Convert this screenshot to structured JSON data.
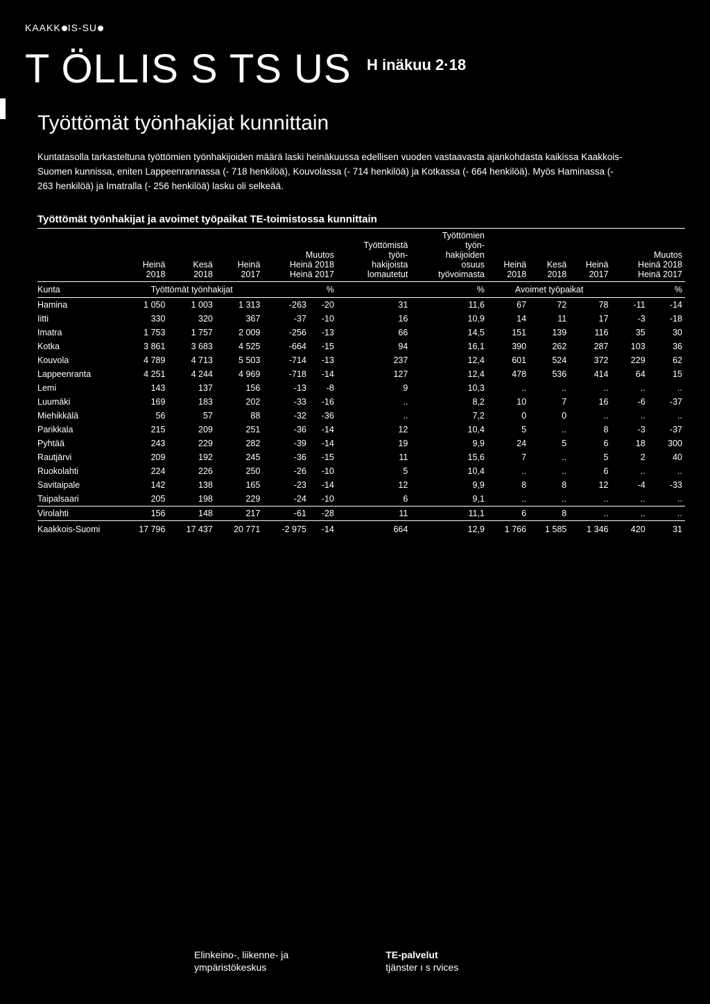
{
  "region_label_parts": [
    "KAAKK",
    "IS-SU"
  ],
  "main_title": "T ÖLLIS   S   TS  US",
  "period": "H  inäkuu 2·18",
  "sub_title": "Työttömät työnhakijat kunnittain",
  "intro": "Kuntatasolla tarkasteltuna työttömien työnhakijoiden määrä laski heinäkuussa edellisen vuoden vastaavasta ajankohdasta kaikissa Kaakkois-Suomen kunnissa, eniten Lappeenrannassa (- 718 henkilöä), Kouvolassa (- 714 henkilöä) ja Kotkassa (- 664 henkilöä). Myös Haminassa (- 263 henkilöä) ja Imatralla (- 256 henkilöä) lasku oli selkeää.",
  "table_title": "Työttömät työnhakijat ja avoimet työpaikat TE-toimistossa kunnittain",
  "headers": {
    "blank": "",
    "heina2018": "Heinä\n2018",
    "kesa2018": "Kesä\n2018",
    "heina2017": "Heinä\n2017",
    "muutos1": "Muutos\nHeinä 2018\nHeinä 2017",
    "tyottomista": "Työttömistä\ntyön-\nhakijoista\nlomautetut",
    "tyottomien": "Työttömien\ntyön-\nhakijoiden\nosuus\ntyövoimasta",
    "heina2018b": "Heinä\n2018",
    "kesa2018b": "Kesä\n2018",
    "heina2017b": "Heinä\n2017",
    "muutos2": "Muutos\nHeinä 2018\nHeinä 2017"
  },
  "section_row": {
    "kunta": "Kunta",
    "left_label": "Työttömät työnhakijat",
    "pct": "%",
    "pct2": "%",
    "right_label": "Avoimet työpaikat",
    "pct3": "%"
  },
  "rows": [
    {
      "k": "Hamina",
      "c": [
        "1 050",
        "1 003",
        "1 313",
        "-263",
        "-20",
        "31",
        "11,6",
        "67",
        "72",
        "78",
        "-11",
        "-14"
      ]
    },
    {
      "k": "Iitti",
      "c": [
        "330",
        "320",
        "367",
        "-37",
        "-10",
        "16",
        "10,9",
        "14",
        "11",
        "17",
        "-3",
        "-18"
      ]
    },
    {
      "k": "Imatra",
      "c": [
        "1 753",
        "1 757",
        "2 009",
        "-256",
        "-13",
        "66",
        "14,5",
        "151",
        "139",
        "116",
        "35",
        "30"
      ]
    },
    {
      "k": "Kotka",
      "c": [
        "3 861",
        "3 683",
        "4 525",
        "-664",
        "-15",
        "94",
        "16,1",
        "390",
        "262",
        "287",
        "103",
        "36"
      ]
    },
    {
      "k": "Kouvola",
      "c": [
        "4 789",
        "4 713",
        "5 503",
        "-714",
        "-13",
        "237",
        "12,4",
        "601",
        "524",
        "372",
        "229",
        "62"
      ]
    },
    {
      "k": "Lappeenranta",
      "c": [
        "4 251",
        "4 244",
        "4 969",
        "-718",
        "-14",
        "127",
        "12,4",
        "478",
        "536",
        "414",
        "64",
        "15"
      ]
    },
    {
      "k": "Lemi",
      "c": [
        "143",
        "137",
        "156",
        "-13",
        "-8",
        "9",
        "10,3",
        "..",
        "..",
        "..",
        "..",
        ".."
      ]
    },
    {
      "k": "Luumäki",
      "c": [
        "169",
        "183",
        "202",
        "-33",
        "-16",
        "..",
        "8,2",
        "10",
        "7",
        "16",
        "-6",
        "-37"
      ]
    },
    {
      "k": "Miehikkälä",
      "c": [
        "56",
        "57",
        "88",
        "-32",
        "-36",
        "..",
        "7,2",
        "0",
        "0",
        "..",
        "..",
        ".."
      ]
    },
    {
      "k": "Parikkala",
      "c": [
        "215",
        "209",
        "251",
        "-36",
        "-14",
        "12",
        "10,4",
        "5",
        "..",
        "8",
        "-3",
        "-37"
      ]
    },
    {
      "k": "Pyhtää",
      "c": [
        "243",
        "229",
        "282",
        "-39",
        "-14",
        "19",
        "9,9",
        "24",
        "5",
        "6",
        "18",
        "300"
      ]
    },
    {
      "k": "Rautjärvi",
      "c": [
        "209",
        "192",
        "245",
        "-36",
        "-15",
        "11",
        "15,6",
        "7",
        "..",
        "5",
        "2",
        "40"
      ]
    },
    {
      "k": "Ruokolahti",
      "c": [
        "224",
        "226",
        "250",
        "-26",
        "-10",
        "5",
        "10,4",
        "..",
        "..",
        "6",
        "..",
        ".."
      ]
    },
    {
      "k": "Savitaipale",
      "c": [
        "142",
        "138",
        "165",
        "-23",
        "-14",
        "12",
        "9,9",
        "8",
        "8",
        "12",
        "-4",
        "-33"
      ]
    },
    {
      "k": "Taipalsaari",
      "c": [
        "205",
        "198",
        "229",
        "-24",
        "-10",
        "6",
        "9,1",
        "..",
        "..",
        "..",
        "..",
        ".."
      ]
    },
    {
      "k": "Virolahti",
      "c": [
        "156",
        "148",
        "217",
        "-61",
        "-28",
        "11",
        "11,1",
        "6",
        "8",
        "..",
        "..",
        ".."
      ],
      "sep": true
    }
  ],
  "total": {
    "k": "Kaakkois-Suomi",
    "c": [
      "17 796",
      "17 437",
      "20 771",
      "-2 975",
      "-14",
      "664",
      "12,9",
      "1 766",
      "1 585",
      "1 346",
      "420",
      "31"
    ]
  },
  "footer": {
    "left1": "Elinkeino-, liikenne- ja",
    "left2": "ympäristökeskus",
    "right1": "TE-palvelut",
    "right2": "tjänster ı s rvices"
  }
}
